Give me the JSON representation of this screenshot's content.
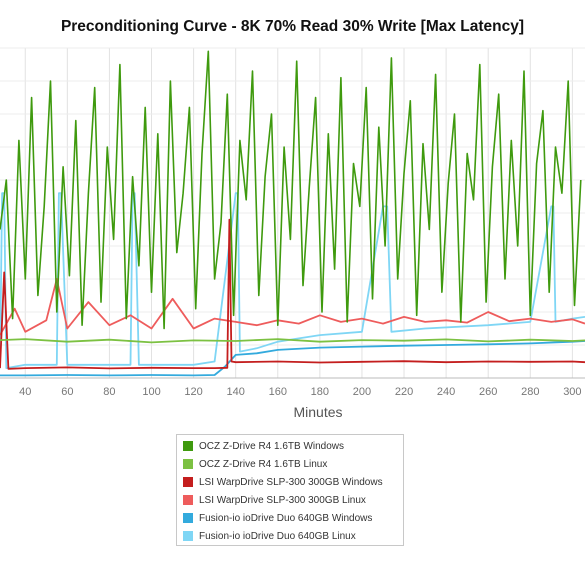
{
  "chart_data": {
    "type": "line",
    "title": "Preconditioning Curve - 8K 70% Read 30% Write [Max Latency]",
    "xlabel": "Minutes",
    "ylabel": "",
    "xlim": [
      28,
      306
    ],
    "ylim": [
      0,
      1000
    ],
    "x_ticks": [
      40,
      60,
      80,
      100,
      120,
      140,
      160,
      180,
      200,
      220,
      240,
      260,
      280,
      300
    ],
    "grid": true,
    "legend_position": "bottom-center",
    "series": [
      {
        "name": "OCZ Z-Drive R4 1.6TB Windows",
        "color": "#3f9a0e",
        "x": [
          28,
          31,
          34,
          37,
          40,
          43,
          46,
          49,
          52,
          55,
          58,
          61,
          64,
          67,
          70,
          73,
          76,
          79,
          82,
          85,
          88,
          91,
          94,
          97,
          100,
          103,
          106,
          109,
          112,
          115,
          118,
          121,
          124,
          127,
          130,
          133,
          136,
          139,
          142,
          145,
          148,
          151,
          154,
          157,
          160,
          163,
          166,
          169,
          172,
          175,
          178,
          181,
          184,
          187,
          190,
          193,
          196,
          199,
          202,
          205,
          208,
          211,
          214,
          217,
          220,
          223,
          226,
          229,
          232,
          235,
          238,
          241,
          244,
          247,
          250,
          253,
          256,
          259,
          262,
          265,
          268,
          271,
          274,
          277,
          280,
          283,
          286,
          289,
          292,
          295,
          298,
          301,
          304
        ],
        "values": [
          450,
          600,
          180,
          720,
          300,
          850,
          250,
          520,
          900,
          200,
          640,
          310,
          780,
          160,
          560,
          880,
          230,
          700,
          420,
          950,
          180,
          610,
          340,
          820,
          260,
          740,
          150,
          900,
          380,
          560,
          820,
          210,
          680,
          990,
          300,
          470,
          860,
          190,
          720,
          540,
          930,
          250,
          610,
          800,
          160,
          700,
          420,
          960,
          280,
          580,
          850,
          200,
          740,
          330,
          910,
          170,
          650,
          520,
          880,
          240,
          760,
          400,
          970,
          300,
          620,
          840,
          190,
          710,
          450,
          920,
          260,
          590,
          800,
          170,
          680,
          540,
          950,
          230,
          640,
          860,
          300,
          720,
          400,
          930,
          190,
          650,
          810,
          260,
          700,
          560,
          900,
          220,
          600
        ]
      },
      {
        "name": "OCZ Z-Drive R4 1.6TB Linux",
        "color": "#7cc142",
        "x": [
          28,
          40,
          60,
          80,
          100,
          120,
          140,
          160,
          180,
          200,
          220,
          240,
          260,
          280,
          300,
          306
        ],
        "values": [
          115,
          118,
          110,
          116,
          108,
          114,
          112,
          118,
          110,
          115,
          113,
          117,
          111,
          116,
          112,
          114
        ]
      },
      {
        "name": "LSI WarpDrive SLP-300 300GB Windows",
        "color": "#c41e1e",
        "x": [
          28,
          30,
          32,
          40,
          60,
          80,
          100,
          120,
          130,
          136,
          137,
          138,
          140,
          160,
          180,
          200,
          220,
          240,
          260,
          280,
          300,
          306
        ],
        "values": [
          30,
          320,
          28,
          30,
          32,
          29,
          31,
          30,
          30,
          31,
          480,
          50,
          48,
          50,
          47,
          49,
          51,
          48,
          50,
          49,
          50,
          48
        ]
      },
      {
        "name": "LSI WarpDrive SLP-300 300GB Linux",
        "color": "#ee5c5c",
        "x": [
          28,
          35,
          40,
          50,
          55,
          60,
          70,
          80,
          90,
          100,
          110,
          120,
          130,
          140,
          150,
          160,
          170,
          180,
          190,
          200,
          210,
          220,
          230,
          240,
          250,
          260,
          270,
          280,
          290,
          300,
          306
        ],
        "values": [
          130,
          210,
          140,
          175,
          300,
          150,
          230,
          160,
          190,
          150,
          240,
          150,
          180,
          170,
          160,
          175,
          165,
          190,
          170,
          180,
          165,
          185,
          170,
          175,
          168,
          200,
          172,
          180,
          170,
          178,
          165
        ]
      },
      {
        "name": "Fusion-io ioDrive Duo 640GB Windows",
        "color": "#33aadd",
        "x": [
          28,
          40,
          60,
          80,
          100,
          120,
          130,
          135,
          140,
          150,
          160,
          180,
          200,
          220,
          240,
          260,
          280,
          300,
          306
        ],
        "values": [
          8,
          8,
          9,
          8,
          9,
          8,
          9,
          35,
          70,
          75,
          85,
          92,
          95,
          98,
          100,
          102,
          105,
          110,
          112
        ]
      },
      {
        "name": "Fusion-io ioDrive Duo 640GB Linux",
        "color": "#7fd6f5",
        "x": [
          28,
          29,
          30,
          31,
          40,
          55,
          56,
          57,
          60,
          90,
          91,
          92,
          94,
          120,
          130,
          140,
          141,
          142,
          150,
          160,
          170,
          180,
          200,
          210,
          211,
          212,
          214,
          230,
          260,
          280,
          290,
          291,
          292,
          300,
          306
        ],
        "values": [
          30,
          560,
          560,
          30,
          40,
          40,
          560,
          560,
          40,
          40,
          560,
          560,
          40,
          40,
          50,
          560,
          560,
          80,
          90,
          110,
          120,
          130,
          140,
          520,
          520,
          520,
          140,
          150,
          160,
          170,
          520,
          520,
          170,
          180,
          185
        ]
      }
    ]
  }
}
